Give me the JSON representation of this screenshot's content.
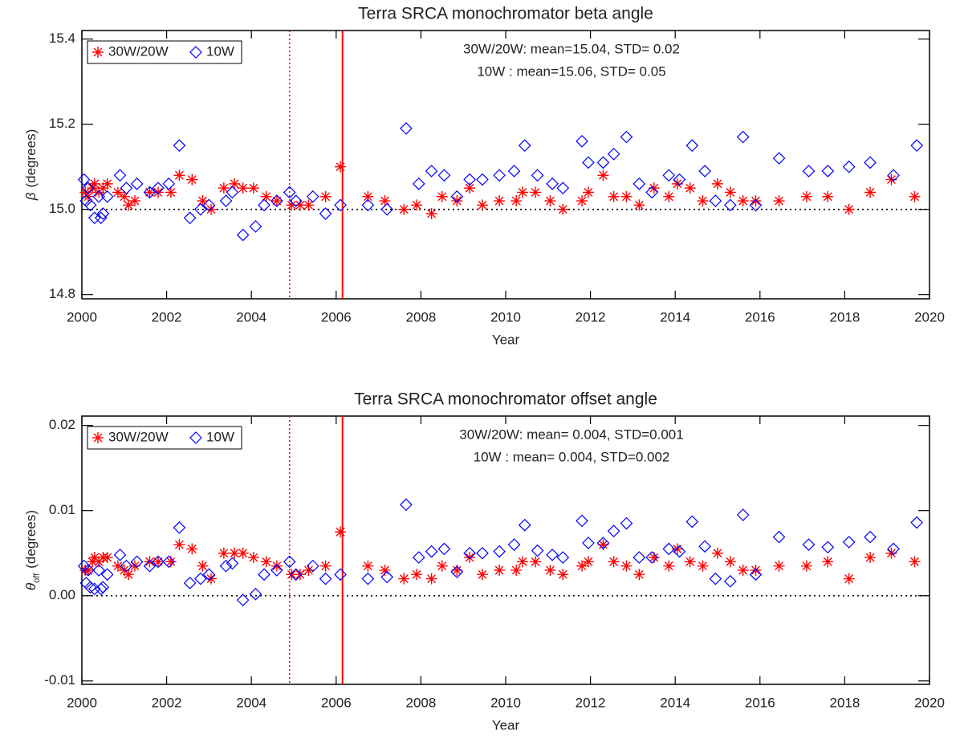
{
  "chart_data": [
    {
      "type": "scatter",
      "title": "Terra SRCA monochromator beta angle",
      "x_label": "Year",
      "y_label_symbol": "β",
      "y_label": "(degrees)",
      "xlim": [
        2000,
        2020
      ],
      "xticks": [
        2000,
        2002,
        2004,
        2006,
        2008,
        2010,
        2012,
        2014,
        2016,
        2018,
        2020
      ],
      "ylim": [
        14.79,
        15.42
      ],
      "yticks": [
        14.8,
        {
          "value": 15,
          "label": "15.0"
        },
        15.2,
        15.4
      ],
      "hline": 15,
      "vlines": [
        {
          "x": 2004.9,
          "style": "dotted",
          "color": "#ff0000"
        },
        {
          "x": 2006.15,
          "style": "solid",
          "color": "#ff0000"
        }
      ],
      "annotations": [
        {
          "text": "30W/20W: mean=15.04, STD= 0.02",
          "color": "#ff0000"
        },
        {
          "text": "10W : mean=15.06, STD= 0.05",
          "color": "#0000ff"
        }
      ],
      "series": [
        {
          "name": "30W/20W",
          "color": "#ff0000",
          "marker": "star",
          "x": [
            2000.08,
            2000.15,
            2000.25,
            2000.3,
            2000.4,
            2000.5,
            2000.6,
            2000.85,
            2001.0,
            2001.1,
            2001.25,
            2001.6,
            2001.8,
            2002.1,
            2002.3,
            2002.6,
            2002.85,
            2003.05,
            2003.35,
            2003.6,
            2003.8,
            2004.05,
            2004.35,
            2004.6,
            2004.95,
            2005.15,
            2005.35,
            2005.75,
            2006.1,
            2006.75,
            2007.15,
            2007.6,
            2007.9,
            2008.25,
            2008.5,
            2008.85,
            2009.15,
            2009.45,
            2009.85,
            2010.25,
            2010.4,
            2010.7,
            2011.05,
            2011.35,
            2011.8,
            2011.95,
            2012.3,
            2012.55,
            2012.85,
            2013.15,
            2013.5,
            2013.85,
            2014.05,
            2014.35,
            2014.65,
            2015.0,
            2015.3,
            2015.6,
            2015.9,
            2016.45,
            2017.1,
            2017.6,
            2018.1,
            2018.6,
            2019.1,
            2019.65
          ],
          "values": [
            15.04,
            15.03,
            15.05,
            15.06,
            15.04,
            15.05,
            15.06,
            15.04,
            15.03,
            15.01,
            15.02,
            15.04,
            15.04,
            15.04,
            15.08,
            15.07,
            15.02,
            15.0,
            15.05,
            15.06,
            15.05,
            15.05,
            15.03,
            15.02,
            15.01,
            15.01,
            15.01,
            15.03,
            15.1,
            15.03,
            15.02,
            15.0,
            15.01,
            14.99,
            15.03,
            15.02,
            15.05,
            15.01,
            15.02,
            15.02,
            15.04,
            15.04,
            15.02,
            15.0,
            15.02,
            15.04,
            15.08,
            15.03,
            15.03,
            15.01,
            15.05,
            15.03,
            15.06,
            15.05,
            15.02,
            15.06,
            15.04,
            15.02,
            15.02,
            15.02,
            15.03,
            15.03,
            15.0,
            15.04,
            15.07,
            15.03
          ]
        },
        {
          "name": "10W",
          "color": "#0000ff",
          "marker": "diamond",
          "x": [
            2000.05,
            2000.1,
            2000.15,
            2000.2,
            2000.3,
            2000.4,
            2000.45,
            2000.5,
            2000.6,
            2000.9,
            2001.05,
            2001.3,
            2001.6,
            2001.8,
            2002.05,
            2002.3,
            2002.55,
            2002.8,
            2003.0,
            2003.4,
            2003.55,
            2003.8,
            2004.1,
            2004.3,
            2004.6,
            2004.9,
            2005.05,
            2005.45,
            2005.75,
            2006.1,
            2006.75,
            2007.2,
            2007.65,
            2007.95,
            2008.25,
            2008.55,
            2008.85,
            2009.15,
            2009.45,
            2009.85,
            2010.2,
            2010.45,
            2010.75,
            2011.1,
            2011.35,
            2011.8,
            2011.95,
            2012.3,
            2012.55,
            2012.85,
            2013.15,
            2013.45,
            2013.85,
            2014.1,
            2014.4,
            2014.7,
            2014.95,
            2015.3,
            2015.6,
            2015.9,
            2016.45,
            2017.15,
            2017.6,
            2018.1,
            2018.6,
            2019.15,
            2019.7
          ],
          "values": [
            15.07,
            15.02,
            15.05,
            15.01,
            14.98,
            15.03,
            14.98,
            14.99,
            15.03,
            15.08,
            15.05,
            15.06,
            15.04,
            15.05,
            15.06,
            15.15,
            14.98,
            15.0,
            15.01,
            15.02,
            15.04,
            14.94,
            14.96,
            15.01,
            15.02,
            15.04,
            15.02,
            15.03,
            14.99,
            15.01,
            15.01,
            15.0,
            15.19,
            15.06,
            15.09,
            15.08,
            15.03,
            15.07,
            15.07,
            15.08,
            15.09,
            15.15,
            15.08,
            15.06,
            15.05,
            15.16,
            15.11,
            15.11,
            15.13,
            15.17,
            15.06,
            15.04,
            15.08,
            15.07,
            15.15,
            15.09,
            15.02,
            15.01,
            15.17,
            15.01,
            15.12,
            15.09,
            15.09,
            15.1,
            15.11,
            15.08,
            15.15
          ]
        }
      ]
    },
    {
      "type": "scatter",
      "title": "Terra SRCA monochromator offset angle",
      "x_label": "Year",
      "y_label_symbol": "θ",
      "y_label_subscript": "off",
      "y_label": "(degrees)",
      "xlim": [
        2000,
        2020
      ],
      "xticks": [
        2000,
        2002,
        2004,
        2006,
        2008,
        2010,
        2012,
        2014,
        2016,
        2018,
        2020
      ],
      "ylim": [
        -0.0104,
        0.0211
      ],
      "yticks": [
        -0.01,
        {
          "value": 0,
          "label": "0.00"
        },
        0.01,
        0.02
      ],
      "hline": 0,
      "vlines": [
        {
          "x": 2004.9,
          "style": "dotted",
          "color": "#ff0000"
        },
        {
          "x": 2006.15,
          "style": "solid",
          "color": "#ff0000"
        }
      ],
      "annotations": [
        {
          "text": "30W/20W: mean= 0.004, STD=0.001",
          "color": "#ff0000"
        },
        {
          "text": "10W : mean= 0.004, STD=0.002",
          "color": "#0000ff"
        }
      ],
      "series": [
        {
          "name": "30W/20W",
          "color": "#ff0000",
          "marker": "star",
          "x": [
            2000.08,
            2000.15,
            2000.25,
            2000.3,
            2000.4,
            2000.5,
            2000.6,
            2000.85,
            2001.0,
            2001.1,
            2001.25,
            2001.6,
            2001.8,
            2002.1,
            2002.3,
            2002.6,
            2002.85,
            2003.05,
            2003.35,
            2003.6,
            2003.8,
            2004.05,
            2004.35,
            2004.6,
            2004.95,
            2005.15,
            2005.35,
            2005.75,
            2006.1,
            2006.75,
            2007.15,
            2007.6,
            2007.9,
            2008.25,
            2008.5,
            2008.85,
            2009.15,
            2009.45,
            2009.85,
            2010.25,
            2010.4,
            2010.7,
            2011.05,
            2011.35,
            2011.8,
            2011.95,
            2012.3,
            2012.55,
            2012.85,
            2013.15,
            2013.5,
            2013.85,
            2014.05,
            2014.35,
            2014.65,
            2015.0,
            2015.3,
            2015.6,
            2015.9,
            2016.45,
            2017.1,
            2017.6,
            2018.1,
            2018.6,
            2019.1,
            2019.65
          ],
          "values": [
            0.003,
            0.003,
            0.004,
            0.0045,
            0.004,
            0.0045,
            0.0045,
            0.0035,
            0.003,
            0.0025,
            0.0035,
            0.004,
            0.004,
            0.004,
            0.006,
            0.0055,
            0.0035,
            0.002,
            0.005,
            0.005,
            0.005,
            0.0045,
            0.004,
            0.0035,
            0.0025,
            0.0025,
            0.003,
            0.0035,
            0.0075,
            0.0035,
            0.003,
            0.002,
            0.0025,
            0.002,
            0.0035,
            0.003,
            0.0045,
            0.0025,
            0.003,
            0.003,
            0.004,
            0.004,
            0.003,
            0.0025,
            0.0035,
            0.004,
            0.006,
            0.004,
            0.0035,
            0.0025,
            0.0045,
            0.0035,
            0.0055,
            0.004,
            0.0035,
            0.005,
            0.004,
            0.003,
            0.003,
            0.0035,
            0.0035,
            0.004,
            0.002,
            0.0045,
            0.005,
            0.004
          ]
        },
        {
          "name": "10W",
          "color": "#0000ff",
          "marker": "diamond",
          "x": [
            2000.05,
            2000.1,
            2000.15,
            2000.2,
            2000.3,
            2000.4,
            2000.45,
            2000.5,
            2000.6,
            2000.9,
            2001.05,
            2001.3,
            2001.6,
            2001.8,
            2002.05,
            2002.3,
            2002.55,
            2002.8,
            2003.0,
            2003.4,
            2003.55,
            2003.8,
            2004.1,
            2004.3,
            2004.6,
            2004.9,
            2005.05,
            2005.45,
            2005.75,
            2006.1,
            2006.75,
            2007.2,
            2007.65,
            2007.95,
            2008.25,
            2008.55,
            2008.85,
            2009.15,
            2009.45,
            2009.85,
            2010.2,
            2010.45,
            2010.75,
            2011.1,
            2011.35,
            2011.8,
            2011.95,
            2012.3,
            2012.55,
            2012.85,
            2013.15,
            2013.45,
            2013.85,
            2014.1,
            2014.4,
            2014.7,
            2014.95,
            2015.3,
            2015.6,
            2015.9,
            2016.45,
            2017.15,
            2017.6,
            2018.1,
            2018.6,
            2019.15,
            2019.7
          ],
          "values": [
            0.0035,
            0.0015,
            0.003,
            0.001,
            0.0008,
            0.003,
            0.0008,
            0.001,
            0.0025,
            0.0048,
            0.0035,
            0.004,
            0.0035,
            0.004,
            0.004,
            0.008,
            0.0015,
            0.002,
            0.0025,
            0.0035,
            0.0038,
            -0.0005,
            0.0002,
            0.0025,
            0.003,
            0.004,
            0.0025,
            0.0035,
            0.002,
            0.0025,
            0.002,
            0.0022,
            0.0107,
            0.0045,
            0.0052,
            0.0055,
            0.0028,
            0.005,
            0.005,
            0.0052,
            0.006,
            0.0083,
            0.0053,
            0.0048,
            0.0045,
            0.0088,
            0.0062,
            0.0062,
            0.0076,
            0.0085,
            0.0045,
            0.0045,
            0.0055,
            0.0052,
            0.0087,
            0.0058,
            0.002,
            0.0017,
            0.0095,
            0.0025,
            0.0069,
            0.006,
            0.0057,
            0.0063,
            0.0069,
            0.0055,
            0.0086
          ]
        }
      ]
    }
  ]
}
